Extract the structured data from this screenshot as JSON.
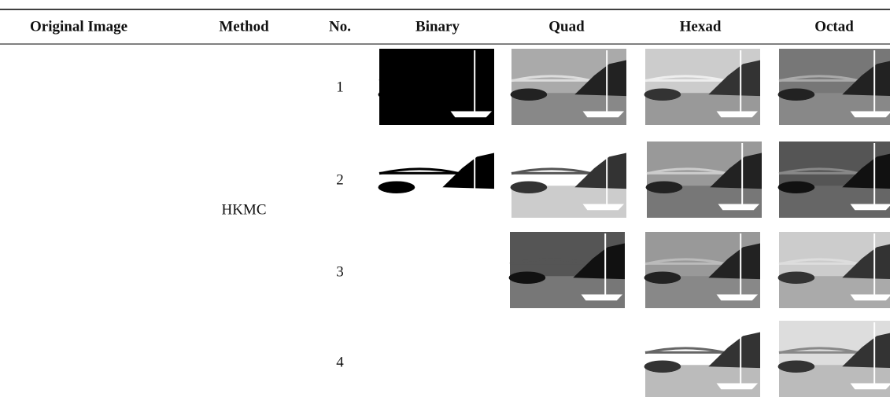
{
  "table": {
    "header": [
      "Original Image",
      "Method",
      "No.",
      "Binary",
      "Quad",
      "Hexad",
      "Octad"
    ],
    "method": "HKMC",
    "numbers": [
      1,
      2,
      3,
      4
    ]
  }
}
